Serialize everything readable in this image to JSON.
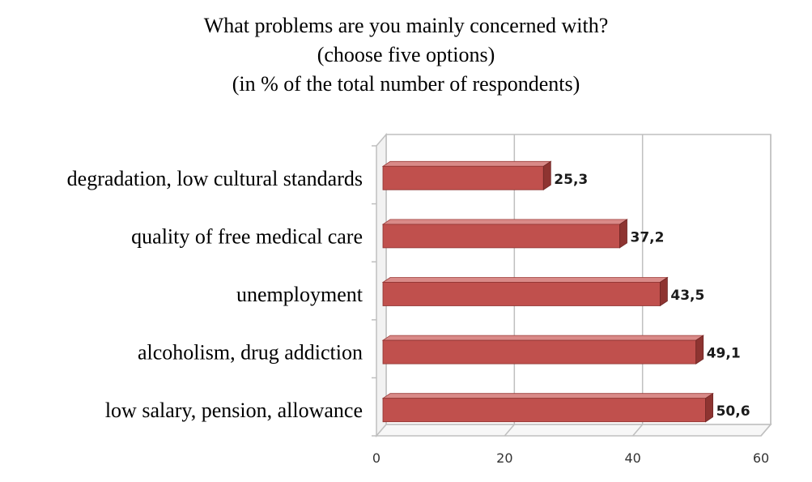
{
  "chart_data": {
    "type": "bar",
    "orientation": "horizontal",
    "title_lines": [
      "What problems are you mainly concerned with?",
      "(choose five options)",
      "(in % of the total number of respondents)"
    ],
    "categories": [
      "degradation, low cultural standards",
      "quality of free medical care",
      "unemployment",
      "alcoholism, drug addiction",
      "low salary, pension, allowance"
    ],
    "values": [
      25.3,
      37.2,
      43.5,
      49.1,
      50.6
    ],
    "value_labels": [
      "25,3",
      "37,2",
      "43,5",
      "49,1",
      "50,6"
    ],
    "x_ticks": [
      0,
      20,
      40,
      60
    ],
    "xlim": [
      0,
      60
    ],
    "grid": true,
    "style": "3d",
    "bar_color": "#c0504d"
  }
}
